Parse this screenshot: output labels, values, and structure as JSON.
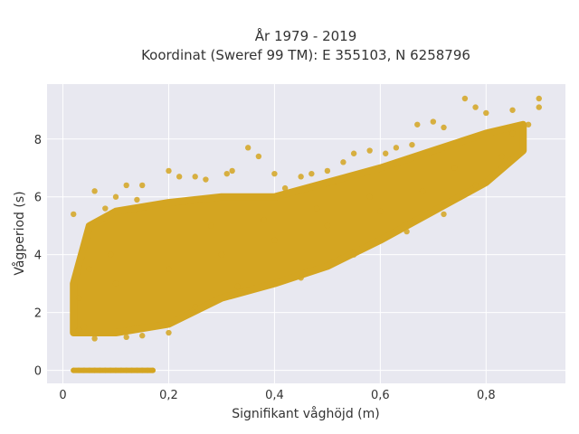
{
  "chart_data": {
    "type": "scatter",
    "title_line1": "År 1979 - 2019",
    "title_line2": "Koordinat (Sweref 99 TM): E 355103, N 6258796",
    "xlabel": "Signifikant våghöjd (m)",
    "ylabel": "Vågperiod (s)",
    "xlim": [
      -0.03,
      0.95
    ],
    "ylim": [
      -0.45,
      9.9
    ],
    "xticks": [
      {
        "value": 0,
        "label": "0"
      },
      {
        "value": 0.2,
        "label": "0,2"
      },
      {
        "value": 0.4,
        "label": "0,4"
      },
      {
        "value": 0.6,
        "label": "0,6"
      },
      {
        "value": 0.8,
        "label": "0,8"
      }
    ],
    "yticks": [
      {
        "value": 0,
        "label": "0"
      },
      {
        "value": 2,
        "label": "2"
      },
      {
        "value": 4,
        "label": "4"
      },
      {
        "value": 6,
        "label": "6"
      },
      {
        "value": 8,
        "label": "8"
      }
    ],
    "grid": true,
    "legend": "none",
    "marker_color": "#d4a521",
    "background_color": "#e8e8f0",
    "density_band": {
      "lower": [
        [
          0.02,
          1.3
        ],
        [
          0.1,
          1.3
        ],
        [
          0.2,
          1.6
        ],
        [
          0.3,
          2.5
        ],
        [
          0.4,
          3.0
        ],
        [
          0.5,
          3.6
        ],
        [
          0.6,
          4.5
        ],
        [
          0.7,
          5.5
        ],
        [
          0.8,
          6.5
        ],
        [
          0.87,
          7.6
        ]
      ],
      "upper": [
        [
          0.02,
          3.0
        ],
        [
          0.05,
          5.0
        ],
        [
          0.1,
          5.5
        ],
        [
          0.2,
          5.8
        ],
        [
          0.3,
          6.0
        ],
        [
          0.4,
          6.0
        ],
        [
          0.5,
          6.5
        ],
        [
          0.6,
          7.0
        ],
        [
          0.7,
          7.6
        ],
        [
          0.8,
          8.2
        ],
        [
          0.87,
          8.5
        ]
      ]
    },
    "points": [
      [
        0.02,
        5.4
      ],
      [
        0.03,
        2.5
      ],
      [
        0.06,
        6.2
      ],
      [
        0.1,
        6.0
      ],
      [
        0.12,
        6.4
      ],
      [
        0.15,
        6.4
      ],
      [
        0.2,
        6.9
      ],
      [
        0.22,
        6.7
      ],
      [
        0.25,
        6.7
      ],
      [
        0.27,
        6.6
      ],
      [
        0.35,
        7.7
      ],
      [
        0.37,
        7.4
      ],
      [
        0.31,
        6.8
      ],
      [
        0.32,
        6.9
      ],
      [
        0.4,
        6.8
      ],
      [
        0.42,
        6.3
      ],
      [
        0.45,
        6.7
      ],
      [
        0.47,
        6.8
      ],
      [
        0.5,
        6.9
      ],
      [
        0.53,
        7.2
      ],
      [
        0.55,
        7.5
      ],
      [
        0.58,
        7.6
      ],
      [
        0.61,
        7.5
      ],
      [
        0.63,
        7.7
      ],
      [
        0.66,
        7.8
      ],
      [
        0.67,
        8.5
      ],
      [
        0.7,
        8.6
      ],
      [
        0.72,
        8.4
      ],
      [
        0.76,
        9.4
      ],
      [
        0.78,
        9.1
      ],
      [
        0.8,
        8.9
      ],
      [
        0.85,
        9.0
      ],
      [
        0.9,
        9.4
      ],
      [
        0.9,
        9.1
      ],
      [
        0.85,
        8.2
      ],
      [
        0.88,
        8.5
      ],
      [
        0.04,
        1.5
      ],
      [
        0.06,
        1.1
      ],
      [
        0.15,
        1.2
      ],
      [
        0.2,
        1.3
      ],
      [
        0.03,
        1.4
      ],
      [
        0.12,
        1.15
      ],
      [
        0.08,
        5.6
      ],
      [
        0.14,
        5.9
      ],
      [
        0.09,
        4.0
      ],
      [
        0.05,
        3.5
      ],
      [
        0.25,
        2.2
      ],
      [
        0.33,
        2.9
      ],
      [
        0.45,
        3.2
      ],
      [
        0.55,
        4.0
      ],
      [
        0.65,
        4.8
      ],
      [
        0.72,
        5.4
      ],
      [
        0.78,
        6.4
      ],
      [
        0.83,
        7.4
      ],
      [
        0.6,
        5.5
      ],
      [
        0.5,
        5.0
      ],
      [
        0.4,
        4.5
      ],
      [
        0.3,
        4.0
      ],
      [
        0.2,
        3.5
      ],
      [
        0.1,
        3.0
      ],
      [
        0.68,
        6.2
      ],
      [
        0.74,
        7.0
      ],
      [
        0.58,
        6.0
      ],
      [
        0.48,
        5.6
      ],
      [
        0.38,
        5.2
      ],
      [
        0.28,
        5.0
      ]
    ],
    "zero_row": {
      "y": 0,
      "x": [
        0.02,
        0.03,
        0.04,
        0.05,
        0.06,
        0.07,
        0.08,
        0.09,
        0.1,
        0.11,
        0.12,
        0.13,
        0.14,
        0.15,
        0.16,
        0.17
      ]
    }
  }
}
